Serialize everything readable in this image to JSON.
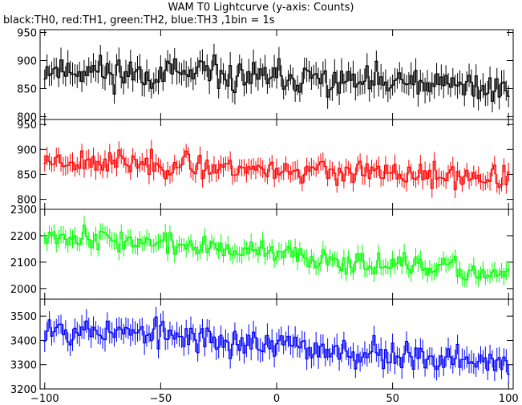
{
  "title": "WAM T0 Lightcurve (y-axis: Counts)",
  "subtitle": "black:TH0, red:TH1, green:TH2, blue:TH3 ,1bin = 1s",
  "chart_data": [
    {
      "type": "line",
      "series": [
        {
          "name": "TH0",
          "color": "#000000",
          "mean_start": 885,
          "mean_end": 850,
          "noise": 24,
          "seed": 11
        }
      ],
      "xlim": [
        -102,
        102
      ],
      "ylim": [
        795,
        955
      ],
      "yticks": [
        800,
        850,
        900,
        950
      ],
      "yticklabels": [
        "800",
        "850",
        "900",
        "950"
      ]
    },
    {
      "type": "line",
      "series": [
        {
          "name": "TH1",
          "color": "#ff0000",
          "mean_start": 880,
          "mean_end": 840,
          "noise": 20,
          "seed": 23
        }
      ],
      "xlim": [
        -102,
        102
      ],
      "ylim": [
        780,
        960
      ],
      "yticks": [
        800,
        850,
        900,
        950
      ],
      "yticklabels": [
        "800",
        "850",
        "900",
        "950"
      ]
    },
    {
      "type": "line",
      "series": [
        {
          "name": "TH2",
          "color": "#00ff00",
          "mean_start": 2210,
          "mean_end": 2050,
          "noise": 35,
          "seed": 37
        }
      ],
      "xlim": [
        -102,
        102
      ],
      "ylim": [
        1960,
        2300
      ],
      "yticks": [
        2000,
        2100,
        2200,
        2300
      ],
      "yticklabels": [
        "2000",
        "2100",
        "2200",
        "2300"
      ]
    },
    {
      "type": "line",
      "series": [
        {
          "name": "TH3",
          "color": "#0000ff",
          "mean_start": 3460,
          "mean_end": 3300,
          "noise": 50,
          "seed": 53
        }
      ],
      "xlim": [
        -102,
        102
      ],
      "ylim": [
        3200,
        3570
      ],
      "yticks": [
        3200,
        3300,
        3400,
        3500
      ],
      "yticklabels": [
        "3200",
        "3300",
        "3400",
        "3500"
      ],
      "xticks": [
        -100,
        -50,
        0,
        50,
        100
      ],
      "xticklabels": [
        "−100",
        "−50",
        "0",
        "50",
        "100"
      ]
    }
  ]
}
